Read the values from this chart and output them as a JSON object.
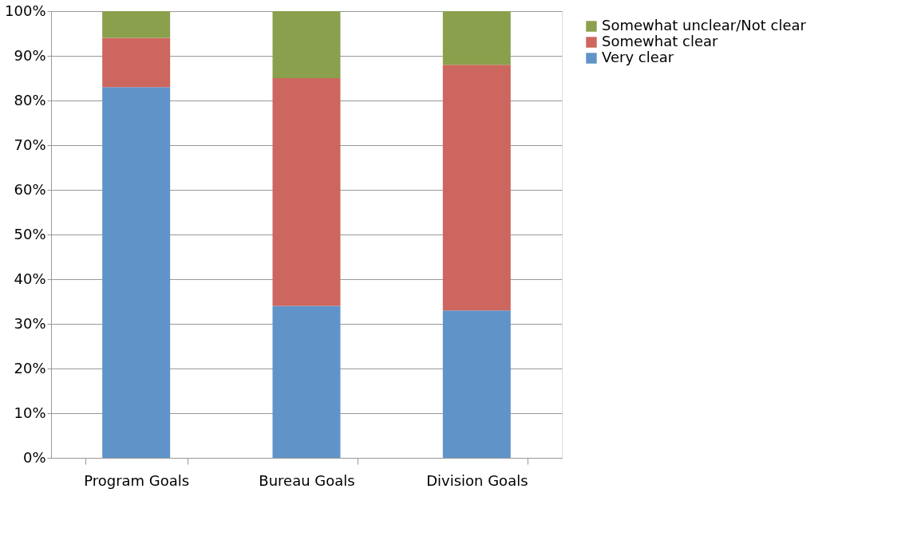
{
  "chart_data": {
    "type": "bar",
    "stacked": true,
    "categories": [
      "Program Goals",
      "Bureau Goals",
      "Division Goals"
    ],
    "series": [
      {
        "name": "Very clear",
        "color": "#6094c8",
        "values": [
          83,
          34,
          33
        ]
      },
      {
        "name": "Somewhat clear",
        "color": "#cd665e",
        "values": [
          11,
          51,
          55
        ]
      },
      {
        "name": "Somewhat unclear/Not clear",
        "color": "#8aa04c",
        "values": [
          6,
          15,
          12
        ]
      }
    ],
    "ylim": [
      0,
      100
    ],
    "yticks": [
      {
        "value": 0,
        "label": "0%"
      },
      {
        "value": 10,
        "label": "10%"
      },
      {
        "value": 20,
        "label": "20%"
      },
      {
        "value": 30,
        "label": "30%"
      },
      {
        "value": 40,
        "label": "40%"
      },
      {
        "value": 50,
        "label": "50%"
      },
      {
        "value": 60,
        "label": "60%"
      },
      {
        "value": 70,
        "label": "70%"
      },
      {
        "value": 80,
        "label": "80%"
      },
      {
        "value": 90,
        "label": "90%"
      },
      {
        "value": 100,
        "label": "100%"
      }
    ],
    "grid": "y",
    "legend": "right"
  }
}
